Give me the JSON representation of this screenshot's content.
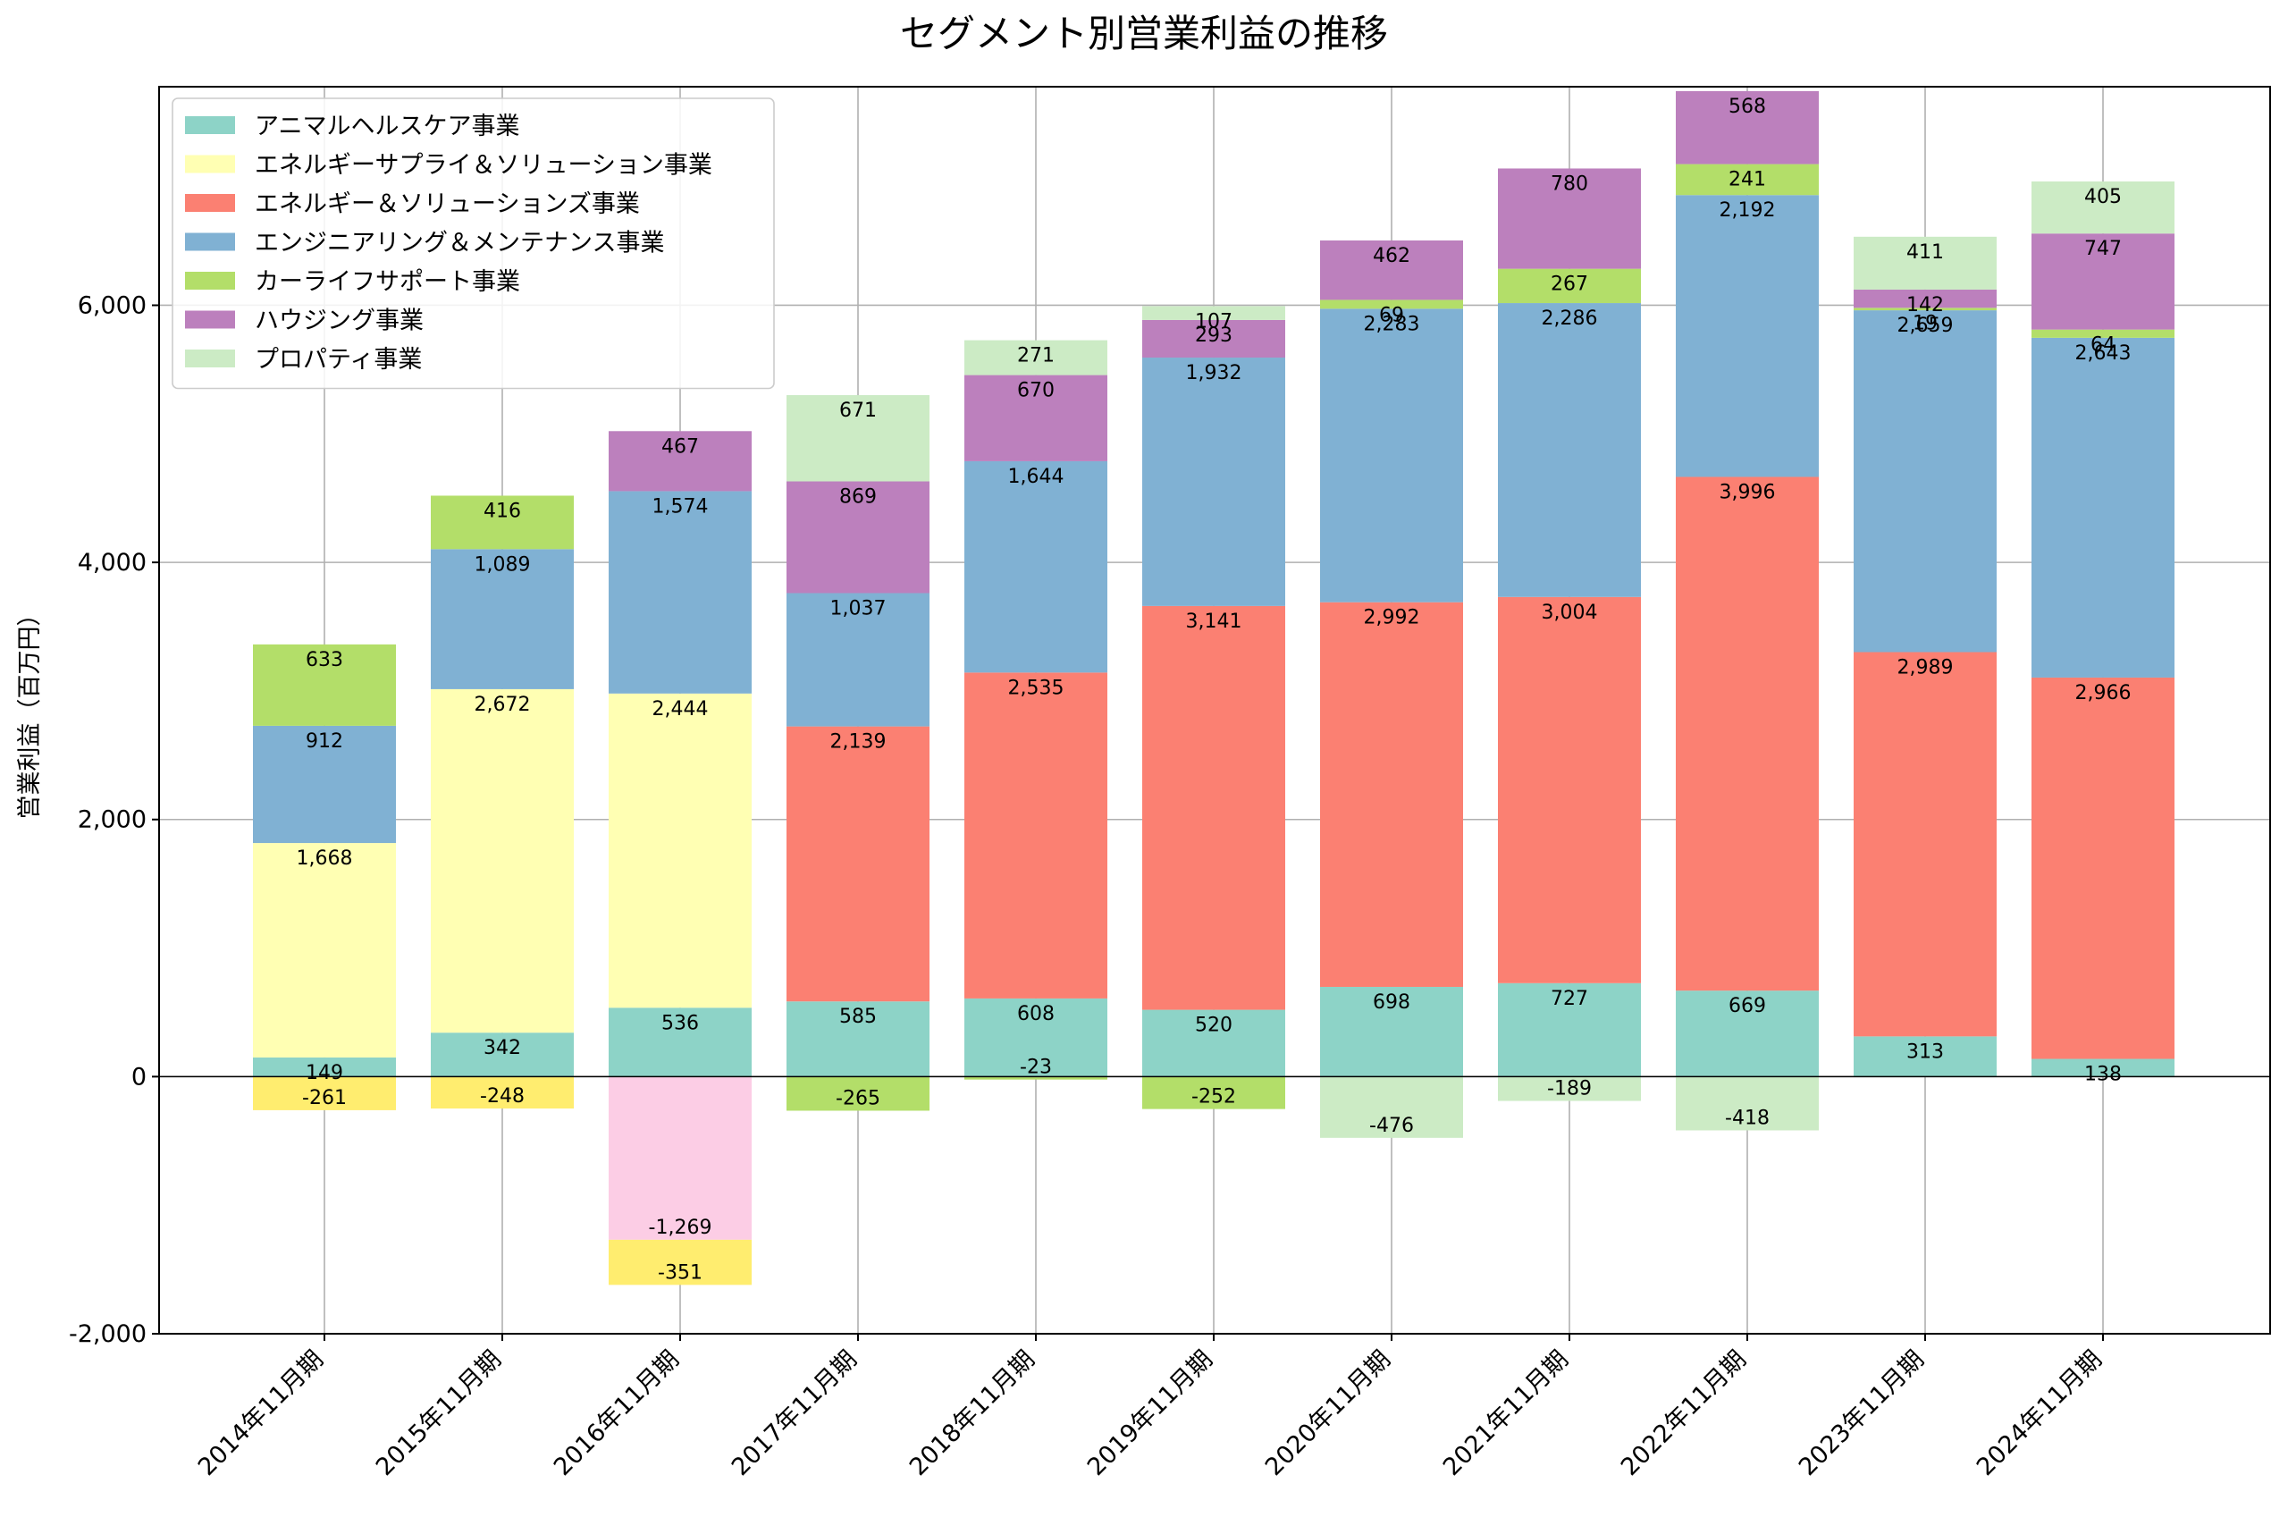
{
  "chart_data": {
    "type": "bar",
    "stacked": true,
    "title": "セグメント別営業利益の推移",
    "xlabel": "",
    "ylabel": "営業利益（百万円）",
    "ylim": [
      -2000,
      7700
    ],
    "yticks": [
      -2000,
      0,
      2000,
      4000,
      6000
    ],
    "ytick_labels": [
      "-2,000",
      "0",
      "2,000",
      "4,000",
      "6,000"
    ],
    "grid": true,
    "legend_position": "top-left",
    "categories": [
      "2014年11月期",
      "2015年11月期",
      "2016年11月期",
      "2017年11月期",
      "2018年11月期",
      "2019年11月期",
      "2020年11月期",
      "2021年11月期",
      "2022年11月期",
      "2023年11月期",
      "2024年11月期"
    ],
    "series": [
      {
        "name": "アニマルヘルスケア事業",
        "color": "#8dd3c7",
        "values": [
          149,
          342,
          536,
          585,
          608,
          520,
          698,
          727,
          669,
          313,
          138
        ]
      },
      {
        "name": "エネルギーサプライ＆ソリューション事業",
        "color": "#ffffb3",
        "values": [
          1668,
          2672,
          2444,
          null,
          null,
          null,
          null,
          null,
          null,
          null,
          null
        ]
      },
      {
        "name": "エネルギー＆ソリューションズ事業",
        "color": "#fb8072",
        "values": [
          null,
          null,
          null,
          2139,
          2535,
          3141,
          2992,
          3004,
          3996,
          2989,
          2966
        ]
      },
      {
        "name": "エンジニアリング＆メンテナンス事業",
        "color": "#80b1d3",
        "values": [
          912,
          1089,
          1574,
          1037,
          1644,
          1932,
          2283,
          2286,
          2192,
          2659,
          2643
        ]
      },
      {
        "name": "カーライフサポート事業",
        "color": "#b3de69",
        "values": [
          633,
          416,
          null,
          -265,
          -23,
          -252,
          69,
          267,
          241,
          19,
          64
        ]
      },
      {
        "name": "ハウジング事業",
        "color": "#bc80bd",
        "values": [
          null,
          null,
          467,
          869,
          670,
          293,
          462,
          780,
          568,
          142,
          747
        ]
      },
      {
        "name": "プロパティ事業",
        "color": "#ccebc5",
        "values": [
          null,
          null,
          null,
          671,
          271,
          107,
          -476,
          -189,
          -418,
          411,
          405
        ]
      },
      {
        "name": "",
        "color": "#fccde5",
        "values": [
          null,
          null,
          -1269,
          null,
          null,
          null,
          null,
          null,
          null,
          null,
          null
        ]
      },
      {
        "name": "",
        "color": "#ffed6f",
        "values": [
          -261,
          -248,
          -351,
          null,
          null,
          null,
          null,
          null,
          null,
          null,
          null
        ]
      }
    ]
  }
}
